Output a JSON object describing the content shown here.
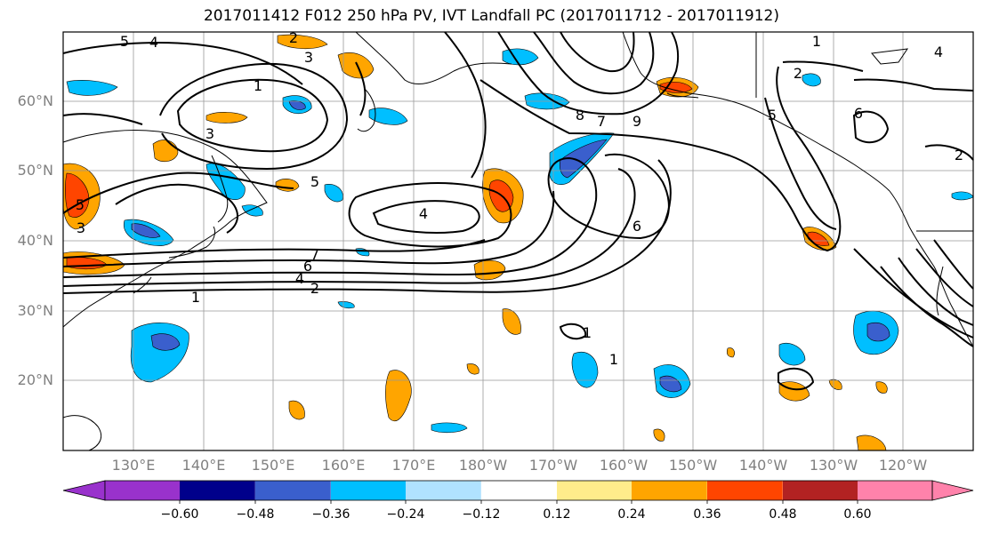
{
  "title": "2017011412 F012 250 hPa PV, IVT Landfall PC (2017011712 - 2017011912)",
  "lat_labels": [
    "60°N",
    "50°N",
    "40°N",
    "30°N",
    "20°N"
  ],
  "lon_labels": [
    "130°E",
    "140°E",
    "150°E",
    "160°E",
    "170°E",
    "180°W",
    "170°W",
    "160°W",
    "150°W",
    "140°W",
    "130°W",
    "120°W"
  ],
  "colorbar": {
    "ticks": [
      "−0.60",
      "−0.48",
      "−0.36",
      "−0.24",
      "−0.12",
      "0.12",
      "0.24",
      "0.36",
      "0.48",
      "0.60"
    ],
    "colors": [
      "#9932CC",
      "#00008B",
      "#3A5FCD",
      "#00BFFF",
      "#B0E2FF",
      "#FFFFFF",
      "#FFEC8B",
      "#FFA500",
      "#FF4500",
      "#B22222",
      "#FF82AB"
    ]
  },
  "contour_labels": [
    "5",
    "4",
    "2",
    "3",
    "1",
    "3",
    "5",
    "8",
    "7",
    "6",
    "2",
    "1",
    "3",
    "5",
    "4",
    "7",
    "6",
    "4",
    "2",
    "1",
    "9",
    "5",
    "6",
    "2",
    "1",
    "1",
    "4"
  ]
}
